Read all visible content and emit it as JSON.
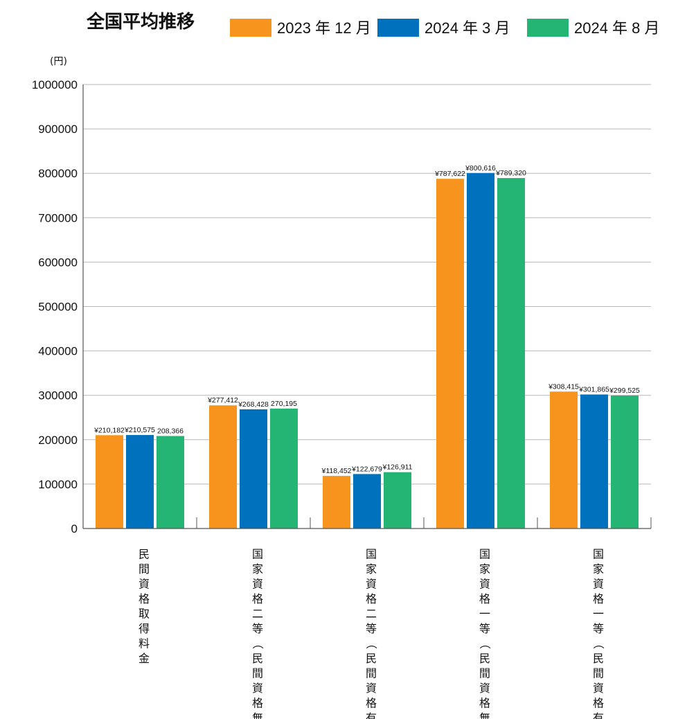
{
  "chart_data": {
    "type": "bar",
    "title": "全国平均推移",
    "unit_label": "(円)",
    "categories": [
      "民間資格取得料金",
      "国家資格二等（民間資格無）",
      "国家資格二等（民間資格有）",
      "国家資格一等（民間資格無）",
      "国家資格一等（民間資格有）"
    ],
    "series": [
      {
        "name": "2023 年 12 月",
        "color": "#F7941D",
        "values": [
          210182,
          277412,
          118452,
          787622,
          308415
        ],
        "labels": [
          "¥210,182",
          "¥277,412",
          "¥118,452",
          "¥787,622",
          "¥308,415"
        ]
      },
      {
        "name": "2024 年 3 月",
        "color": "#0071BC",
        "values": [
          210575,
          268428,
          122679,
          800616,
          301865
        ],
        "labels": [
          "¥210,575",
          "¥268,428",
          "¥122,679",
          "¥800,616",
          "¥301,865"
        ]
      },
      {
        "name": "2024 年 8 月",
        "color": "#24B574",
        "values": [
          208366,
          270195,
          126911,
          789320,
          299525
        ],
        "labels": [
          "208,366",
          "270,195",
          "¥126,911",
          "¥789,320",
          "¥299,525"
        ]
      }
    ],
    "ylim": [
      0,
      1000000
    ],
    "yticks": [
      "0",
      "100000",
      "200000",
      "300000",
      "400000",
      "500000",
      "600000",
      "700000",
      "800000",
      "900000",
      "1000000"
    ],
    "grid": true,
    "legend_position": "top"
  }
}
